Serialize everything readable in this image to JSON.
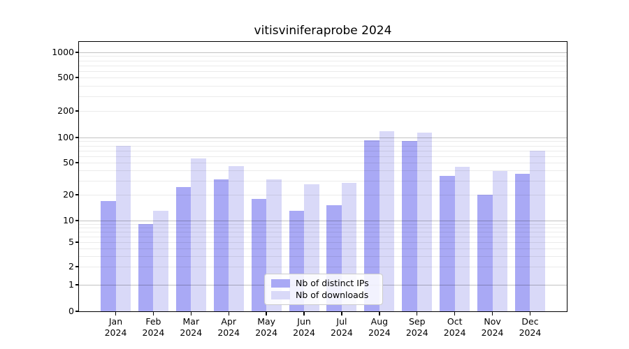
{
  "figure": {
    "title": "vitisviniferaprobe 2024"
  },
  "legend": {
    "items": [
      {
        "label": "Nb of distinct IPs",
        "series_key": "distinct_ips"
      },
      {
        "label": "Nb of downloads",
        "series_key": "downloads"
      }
    ]
  },
  "colors": {
    "distinct_ips": "#a9a9f5",
    "downloads": "#d9d9f8",
    "major_gridline": "rgba(0,0,0,0.24)",
    "minor_gridline": "rgba(0,0,0,0.08)",
    "axis_line": "#000000",
    "text": "#000000",
    "legend_border": "#cccccc"
  },
  "chart_data": {
    "type": "bar",
    "title": "vitisviniferaprobe 2024",
    "categories": [
      "Jan 2024",
      "Feb 2024",
      "Mar 2024",
      "Apr 2024",
      "May 2024",
      "Jun 2024",
      "Jul 2024",
      "Aug 2024",
      "Sep 2024",
      "Oct 2024",
      "Nov 2024",
      "Dec 2024"
    ],
    "series": [
      {
        "name": "Nb of distinct IPs",
        "color_key": "distinct_ips",
        "values": [
          17,
          9,
          25,
          31,
          18,
          13,
          15,
          93,
          90,
          34,
          20,
          36
        ]
      },
      {
        "name": "Nb of downloads",
        "color_key": "downloads",
        "values": [
          80,
          13,
          56,
          45,
          31,
          27,
          28,
          117,
          113,
          44,
          39,
          70
        ]
      }
    ],
    "xlabel": "",
    "ylabel": "",
    "yscale": "symlog",
    "yticks": [
      0,
      1,
      2,
      5,
      10,
      20,
      50,
      100,
      200,
      500,
      1000
    ],
    "ylim": [
      0,
      1350
    ],
    "grid": true,
    "legend_position": "lower center"
  }
}
